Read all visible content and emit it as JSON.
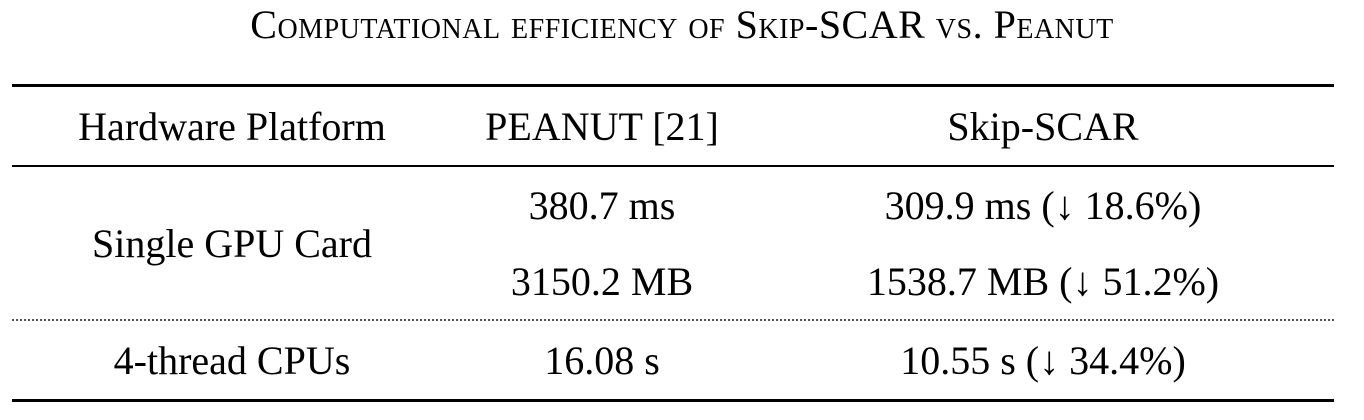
{
  "caption": "Computational efficiency of Skip-SCAR vs. Peanut",
  "table": {
    "headers": [
      "Hardware Platform",
      "PEANUT [21]",
      "Skip-SCAR"
    ],
    "gpu": {
      "platform": "Single GPU Card",
      "peanut": [
        "380.7 ms",
        "3150.2 MB"
      ],
      "skip_scar": [
        "309.9 ms (↓ 18.6%)",
        "1538.7 MB (↓ 51.2%)"
      ]
    },
    "cpu": {
      "platform": "4-thread CPUs",
      "peanut": "16.08 s",
      "skip_scar": "10.55 s (↓ 34.4%)"
    }
  }
}
